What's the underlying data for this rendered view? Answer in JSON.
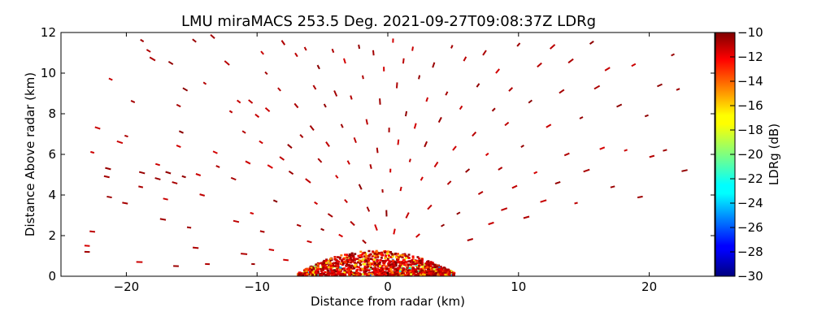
{
  "chart_data": {
    "type": "heatmap",
    "title": "LMU miraMACS 253.5 Deg. 2021-09-27T09:08:37Z  LDRg",
    "xlabel": "Distance from radar (km)",
    "ylabel": "Distance Above radar  (km)",
    "xlim": [
      -25,
      25
    ],
    "ylim": [
      0,
      12
    ],
    "xticks": [
      -20,
      -10,
      0,
      10,
      20
    ],
    "xtick_labels": [
      "−20",
      "−10",
      "0",
      "10",
      "20"
    ],
    "yticks": [
      0,
      2,
      4,
      6,
      8,
      10,
      12
    ],
    "ytick_labels": [
      "0",
      "2",
      "4",
      "6",
      "8",
      "10",
      "12"
    ],
    "colorbar": {
      "label": "LDRg (dB)",
      "colormap": "jet",
      "range": [
        -30,
        -10
      ],
      "ticks": [
        -10,
        -12,
        -14,
        -16,
        -18,
        -20,
        -22,
        -24,
        -26,
        -28,
        -30
      ],
      "tick_labels": [
        "−10",
        "−12",
        "−14",
        "−16",
        "−18",
        "−20",
        "−22",
        "−24",
        "−26",
        "−28",
        "−30"
      ]
    },
    "field_description": "Scattered LDRg radar returns; dense cluster near ground (0-1 km height) within about −7 to 5 km distance, sparse returns elsewhere up to 12 km height",
    "dense_cluster": {
      "x_range_km": [
        -7,
        5
      ],
      "y_range_km": [
        0,
        1.2
      ],
      "dominant_value_db": -11
    },
    "sparse_points": [
      [
        -23.0,
        1.2
      ],
      [
        -23.0,
        1.5
      ],
      [
        -22.6,
        2.2
      ],
      [
        -22.6,
        6.1
      ],
      [
        -22.2,
        7.3
      ],
      [
        -21.5,
        4.9
      ],
      [
        -21.4,
        5.3
      ],
      [
        -21.3,
        3.9
      ],
      [
        -21.2,
        9.7
      ],
      [
        -20.5,
        6.6
      ],
      [
        -20.0,
        6.9
      ],
      [
        -20.1,
        3.6
      ],
      [
        -19.5,
        8.6
      ],
      [
        -19.0,
        0.7
      ],
      [
        -18.9,
        4.4
      ],
      [
        -18.8,
        5.1
      ],
      [
        -18.8,
        11.6
      ],
      [
        -18.3,
        11.1
      ],
      [
        -18.0,
        10.7
      ],
      [
        -17.6,
        4.8
      ],
      [
        -17.6,
        5.5
      ],
      [
        -17.2,
        2.8
      ],
      [
        -17.0,
        3.8
      ],
      [
        -16.8,
        5.1
      ],
      [
        -16.6,
        10.5
      ],
      [
        -16.3,
        4.6
      ],
      [
        -16.2,
        0.5
      ],
      [
        -16.0,
        8.4
      ],
      [
        -16.0,
        6.4
      ],
      [
        -15.8,
        7.1
      ],
      [
        -15.6,
        4.9
      ],
      [
        -15.5,
        9.2
      ],
      [
        -15.2,
        2.4
      ],
      [
        -14.8,
        11.6
      ],
      [
        -14.7,
        1.4
      ],
      [
        -14.5,
        5.0
      ],
      [
        -14.2,
        4.0
      ],
      [
        -14.0,
        9.5
      ],
      [
        -13.8,
        0.6
      ],
      [
        -13.4,
        11.8
      ],
      [
        -13.2,
        6.1
      ],
      [
        -13.0,
        5.4
      ],
      [
        -12.3,
        10.5
      ],
      [
        -12.0,
        8.1
      ],
      [
        -11.8,
        4.8
      ],
      [
        -11.6,
        2.7
      ],
      [
        -11.4,
        8.6
      ],
      [
        -11.0,
        1.1
      ],
      [
        -11.0,
        7.1
      ],
      [
        -10.7,
        5.6
      ],
      [
        -10.5,
        8.6
      ],
      [
        -10.4,
        3.1
      ],
      [
        -10.3,
        0.6
      ],
      [
        -10.0,
        7.9
      ],
      [
        -9.7,
        6.6
      ],
      [
        -9.6,
        11.0
      ],
      [
        -9.6,
        2.2
      ],
      [
        -9.3,
        10.0
      ],
      [
        -9.2,
        8.2
      ],
      [
        -9.0,
        5.4
      ],
      [
        -8.9,
        1.3
      ],
      [
        -8.6,
        3.7
      ],
      [
        -8.3,
        9.2
      ],
      [
        -8.1,
        5.8
      ],
      [
        -8.0,
        11.5
      ],
      [
        -7.8,
        0.8
      ],
      [
        -7.5,
        6.4
      ],
      [
        -7.4,
        5.1
      ],
      [
        -7.0,
        8.4
      ],
      [
        -7.0,
        10.9
      ],
      [
        -6.8,
        2.5
      ],
      [
        -6.6,
        6.9
      ],
      [
        -6.3,
        11.2
      ],
      [
        -6.1,
        4.7
      ],
      [
        -6.0,
        1.7
      ],
      [
        -5.8,
        7.3
      ],
      [
        -5.6,
        9.3
      ],
      [
        -5.5,
        3.6
      ],
      [
        -5.3,
        10.3
      ],
      [
        -5.2,
        5.7
      ],
      [
        -5.0,
        2.3
      ],
      [
        -4.8,
        8.4
      ],
      [
        -4.6,
        6.5
      ],
      [
        -4.4,
        3.0
      ],
      [
        -4.2,
        11.1
      ],
      [
        -4.0,
        9.0
      ],
      [
        -3.9,
        4.9
      ],
      [
        -3.6,
        2.0
      ],
      [
        -3.5,
        7.4
      ],
      [
        -3.3,
        10.6
      ],
      [
        -3.2,
        3.7
      ],
      [
        -3.0,
        5.6
      ],
      [
        -2.8,
        8.8
      ],
      [
        -2.7,
        2.6
      ],
      [
        -2.5,
        6.7
      ],
      [
        -2.2,
        11.3
      ],
      [
        -2.1,
        4.4
      ],
      [
        -1.9,
        9.8
      ],
      [
        -1.8,
        1.7
      ],
      [
        -1.6,
        7.6
      ],
      [
        -1.5,
        3.3
      ],
      [
        -1.3,
        5.4
      ],
      [
        -1.1,
        11.0
      ],
      [
        -0.9,
        2.4
      ],
      [
        -0.8,
        6.2
      ],
      [
        -0.6,
        8.6
      ],
      [
        -0.4,
        4.2
      ],
      [
        -0.3,
        10.2
      ],
      [
        -0.1,
        3.1
      ],
      [
        0.1,
        7.2
      ],
      [
        0.2,
        5.2
      ],
      [
        0.4,
        11.6
      ],
      [
        0.5,
        2.2
      ],
      [
        0.7,
        9.4
      ],
      [
        0.8,
        6.6
      ],
      [
        1.0,
        4.3
      ],
      [
        1.2,
        10.6
      ],
      [
        1.4,
        8.0
      ],
      [
        1.5,
        3.0
      ],
      [
        1.7,
        5.7
      ],
      [
        1.9,
        11.2
      ],
      [
        2.1,
        7.4
      ],
      [
        2.3,
        2.0
      ],
      [
        2.4,
        9.8
      ],
      [
        2.6,
        4.8
      ],
      [
        2.9,
        6.5
      ],
      [
        3.0,
        8.7
      ],
      [
        3.2,
        3.4
      ],
      [
        3.5,
        10.4
      ],
      [
        3.7,
        5.5
      ],
      [
        4.0,
        7.7
      ],
      [
        4.2,
        2.5
      ],
      [
        4.5,
        9.0
      ],
      [
        4.7,
        4.6
      ],
      [
        4.9,
        11.3
      ],
      [
        5.1,
        6.3
      ],
      [
        5.4,
        3.1
      ],
      [
        5.6,
        8.3
      ],
      [
        5.9,
        10.7
      ],
      [
        6.1,
        5.2
      ],
      [
        6.3,
        1.8
      ],
      [
        6.6,
        7.0
      ],
      [
        6.9,
        9.4
      ],
      [
        7.1,
        4.1
      ],
      [
        7.4,
        11.0
      ],
      [
        7.6,
        6.0
      ],
      [
        7.9,
        2.6
      ],
      [
        8.1,
        8.2
      ],
      [
        8.4,
        10.1
      ],
      [
        8.6,
        5.3
      ],
      [
        8.9,
        3.3
      ],
      [
        9.1,
        7.5
      ],
      [
        9.4,
        9.2
      ],
      [
        9.7,
        4.4
      ],
      [
        10.0,
        11.4
      ],
      [
        10.3,
        6.4
      ],
      [
        10.6,
        2.9
      ],
      [
        10.9,
        8.6
      ],
      [
        11.3,
        5.1
      ],
      [
        11.6,
        10.4
      ],
      [
        11.9,
        3.7
      ],
      [
        12.3,
        7.4
      ],
      [
        12.6,
        11.3
      ],
      [
        13.0,
        4.6
      ],
      [
        13.3,
        9.1
      ],
      [
        13.7,
        6.0
      ],
      [
        14.0,
        10.6
      ],
      [
        14.4,
        3.6
      ],
      [
        14.8,
        7.8
      ],
      [
        15.2,
        5.2
      ],
      [
        15.6,
        11.5
      ],
      [
        16.0,
        9.3
      ],
      [
        16.4,
        6.3
      ],
      [
        16.8,
        10.2
      ],
      [
        17.2,
        4.4
      ],
      [
        17.7,
        8.4
      ],
      [
        18.2,
        6.2
      ],
      [
        18.8,
        10.4
      ],
      [
        19.3,
        3.9
      ],
      [
        19.8,
        7.9
      ],
      [
        20.2,
        5.9
      ],
      [
        20.8,
        9.4
      ],
      [
        21.2,
        6.2
      ],
      [
        21.8,
        10.9
      ],
      [
        22.2,
        9.2
      ],
      [
        22.7,
        5.2
      ]
    ]
  }
}
